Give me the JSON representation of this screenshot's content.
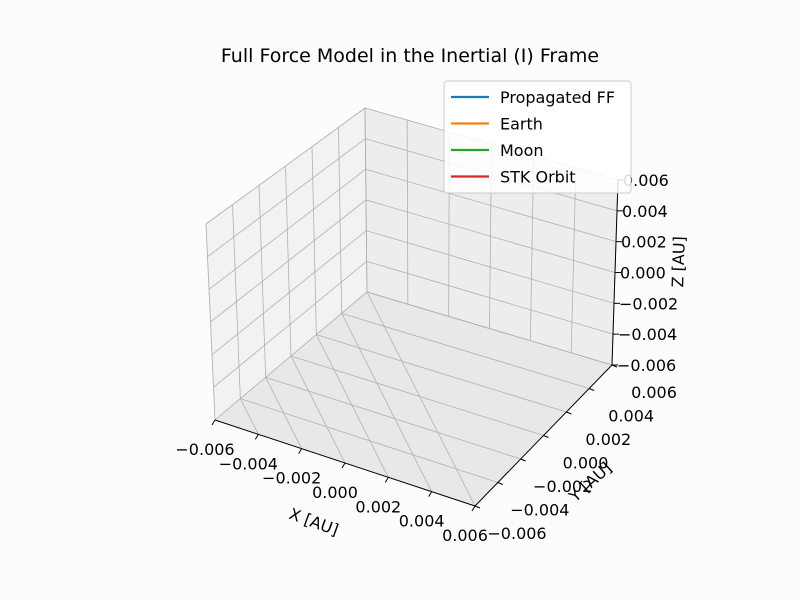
{
  "chart_data": {
    "type": "line3d",
    "title": "Full Force Model in the Inertial (I) Frame",
    "xlabel": "X [AU]",
    "ylabel": "Y [AU]",
    "zlabel": "Z [AU]",
    "xlim": [
      -0.006,
      0.006
    ],
    "ylim": [
      -0.006,
      0.006
    ],
    "zlim": [
      -0.006,
      0.006
    ],
    "xticks": [
      "−0.006",
      "−0.004",
      "−0.002",
      "0.000",
      "0.002",
      "0.004",
      "0.006"
    ],
    "yticks": [
      "0.006",
      "0.004",
      "0.002",
      "0.000",
      "−0.002",
      "−0.004",
      "−0.006"
    ],
    "zticks": [
      "0.006",
      "0.004",
      "0.002",
      "0.000",
      "−0.002",
      "−0.004",
      "−0.006"
    ],
    "grid": true,
    "legend_position": "top-right",
    "series": [
      {
        "name": "Propagated FF",
        "color": "#1f77b4",
        "points": []
      },
      {
        "name": "Earth",
        "color": "#ff7f0e",
        "points": []
      },
      {
        "name": "Moon",
        "color": "#2ca02c",
        "points": []
      },
      {
        "name": "STK Orbit",
        "color": "#d62728",
        "points": []
      }
    ]
  }
}
